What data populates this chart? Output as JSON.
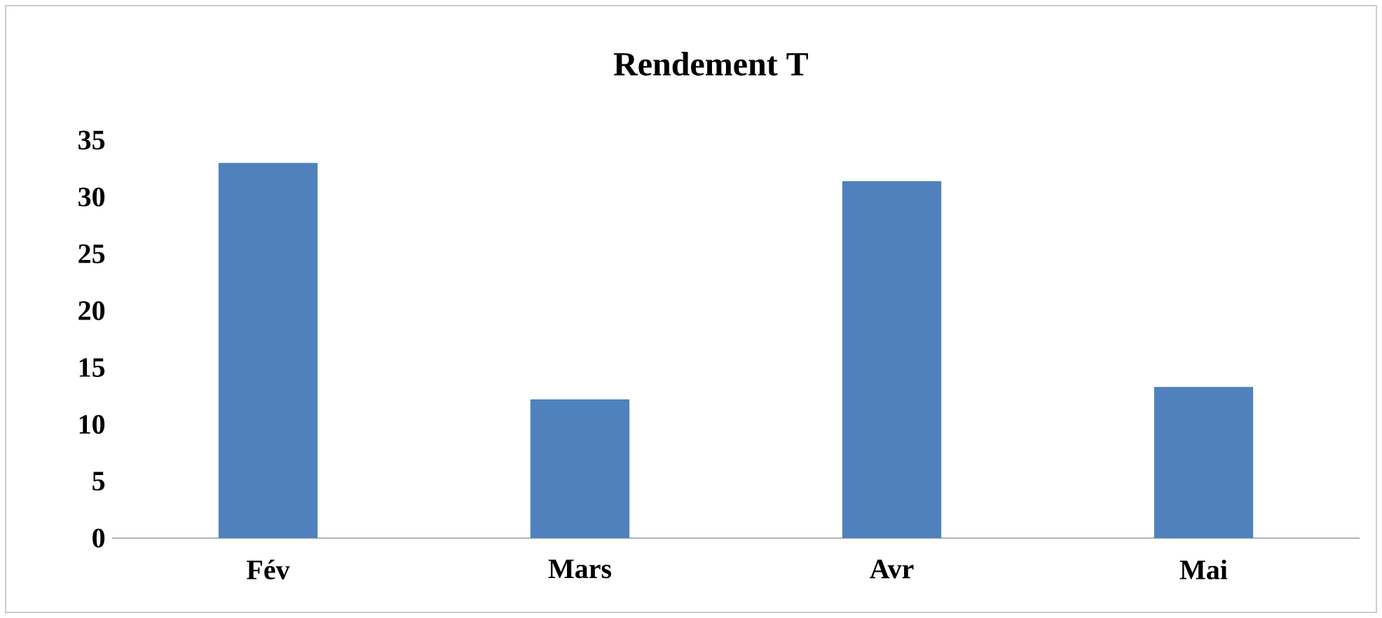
{
  "chart_data": {
    "type": "bar",
    "title": "Rendement T",
    "categories": [
      "Fév",
      "Mars",
      "Avr",
      "Mai"
    ],
    "values": [
      33.0,
      12.2,
      31.4,
      13.3
    ],
    "color": "#4f81bd",
    "ylim": [
      0,
      35
    ],
    "yticks": [
      0,
      5,
      10,
      15,
      20,
      25,
      30,
      35
    ]
  }
}
